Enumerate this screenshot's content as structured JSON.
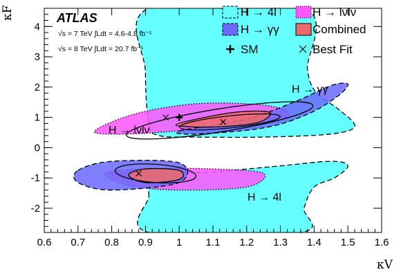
{
  "chart_data": {
    "type": "contour",
    "xlabel": "κV",
    "ylabel": "κF",
    "xlim": [
      0.6,
      1.6
    ],
    "ylim": [
      -2.8,
      4.6
    ],
    "xticks": [
      "0.6",
      "0.7",
      "0.8",
      "0.9",
      "1",
      "1.1",
      "1.2",
      "1.3",
      "1.4",
      "1.5",
      "1.6"
    ],
    "yticks": [
      "-2",
      "-1",
      "0",
      "1",
      "2",
      "3",
      "4"
    ],
    "experiment": "ATLAS",
    "info_lines": [
      "√s = 7 TeV ∫Ldt = 4.6-4.8 fb⁻¹",
      "√s = 8 TeV ∫Ldt = 20.7 fb⁻¹"
    ],
    "legend": [
      {
        "label": "H → 4l",
        "color": "#66ffff"
      },
      {
        "label": "H → lνlν",
        "color": "#ff55ff"
      },
      {
        "label": "H → γγ",
        "color": "#6a6aff"
      },
      {
        "label": "Combined",
        "color": "#ee6a6a"
      },
      {
        "label": "SM",
        "marker": "plus"
      },
      {
        "label": "Best Fit",
        "marker": "cross"
      }
    ],
    "annotations": [
      "H → γγ",
      "H → lνlν",
      "H → 4l"
    ],
    "sm_point": {
      "x": 1.0,
      "y": 1.0
    },
    "best_fit": [
      {
        "x": 1.13,
        "y": 0.85
      },
      {
        "x": 0.88,
        "y": -0.85
      },
      {
        "x": 0.96,
        "y": 1.0
      }
    ],
    "series": [
      {
        "name": "H → 4l",
        "color": "#66ffff",
        "regions": [
          [
            [
              0.91,
              4.6
            ],
            [
              1.37,
              4.6
            ],
            [
              1.38,
              2.6
            ],
            [
              1.4,
              1.9
            ],
            [
              1.43,
              1.6
            ],
            [
              1.48,
              1.2
            ],
            [
              1.52,
              0.7
            ],
            [
              1.45,
              0.45
            ],
            [
              1.25,
              0.35
            ],
            [
              1.05,
              0.35
            ],
            [
              0.94,
              0.4
            ],
            [
              0.91,
              0.8
            ],
            [
              0.9,
              2.5
            ]
          ],
          [
            [
              0.91,
              -1.6
            ],
            [
              0.92,
              -0.9
            ],
            [
              1.1,
              -0.8
            ],
            [
              1.3,
              -0.6
            ],
            [
              1.45,
              -0.45
            ],
            [
              1.5,
              -0.6
            ],
            [
              1.46,
              -1.0
            ],
            [
              1.4,
              -1.3
            ],
            [
              1.37,
              -2.0
            ],
            [
              1.36,
              -2.8
            ],
            [
              0.91,
              -2.8
            ]
          ]
        ]
      },
      {
        "name": "H → lνlν",
        "color": "#ff55ff",
        "regions": [
          [
            [
              0.75,
              0.5
            ],
            [
              0.8,
              0.85
            ],
            [
              0.9,
              1.2
            ],
            [
              1.05,
              1.45
            ],
            [
              1.2,
              1.45
            ],
            [
              1.3,
              1.3
            ],
            [
              1.32,
              1.0
            ],
            [
              1.2,
              0.7
            ],
            [
              1.0,
              0.55
            ],
            [
              0.85,
              0.45
            ]
          ],
          [
            [
              0.78,
              -0.85
            ],
            [
              0.9,
              -0.7
            ],
            [
              1.1,
              -0.7
            ],
            [
              1.25,
              -0.85
            ],
            [
              1.2,
              -1.3
            ],
            [
              1.0,
              -1.4
            ],
            [
              0.85,
              -1.25
            ]
          ]
        ]
      },
      {
        "name": "H → γγ",
        "color": "#6a6aff",
        "regions": [
          [
            [
              1.0,
              0.55
            ],
            [
              1.2,
              0.95
            ],
            [
              1.35,
              1.55
            ],
            [
              1.45,
              2.05
            ],
            [
              1.5,
              2.1
            ],
            [
              1.47,
              1.7
            ],
            [
              1.38,
              1.1
            ],
            [
              1.25,
              0.65
            ],
            [
              1.05,
              0.45
            ]
          ],
          [
            [
              0.7,
              -0.75
            ],
            [
              0.8,
              -0.45
            ],
            [
              1.0,
              -0.5
            ],
            [
              1.0,
              -1.15
            ],
            [
              0.8,
              -1.4
            ],
            [
              0.7,
              -1.15
            ]
          ]
        ]
      },
      {
        "name": "Combined",
        "color": "#ee6a6a",
        "regions": [
          [
            [
              0.99,
              0.75
            ],
            [
              1.1,
              1.05
            ],
            [
              1.2,
              1.2
            ],
            [
              1.27,
              1.15
            ],
            [
              1.23,
              0.82
            ],
            [
              1.1,
              0.68
            ]
          ],
          [
            [
              0.85,
              -0.9
            ],
            [
              0.9,
              -0.7
            ],
            [
              1.0,
              -0.75
            ],
            [
              1.0,
              -1.05
            ],
            [
              0.9,
              -1.15
            ]
          ]
        ]
      }
    ]
  }
}
